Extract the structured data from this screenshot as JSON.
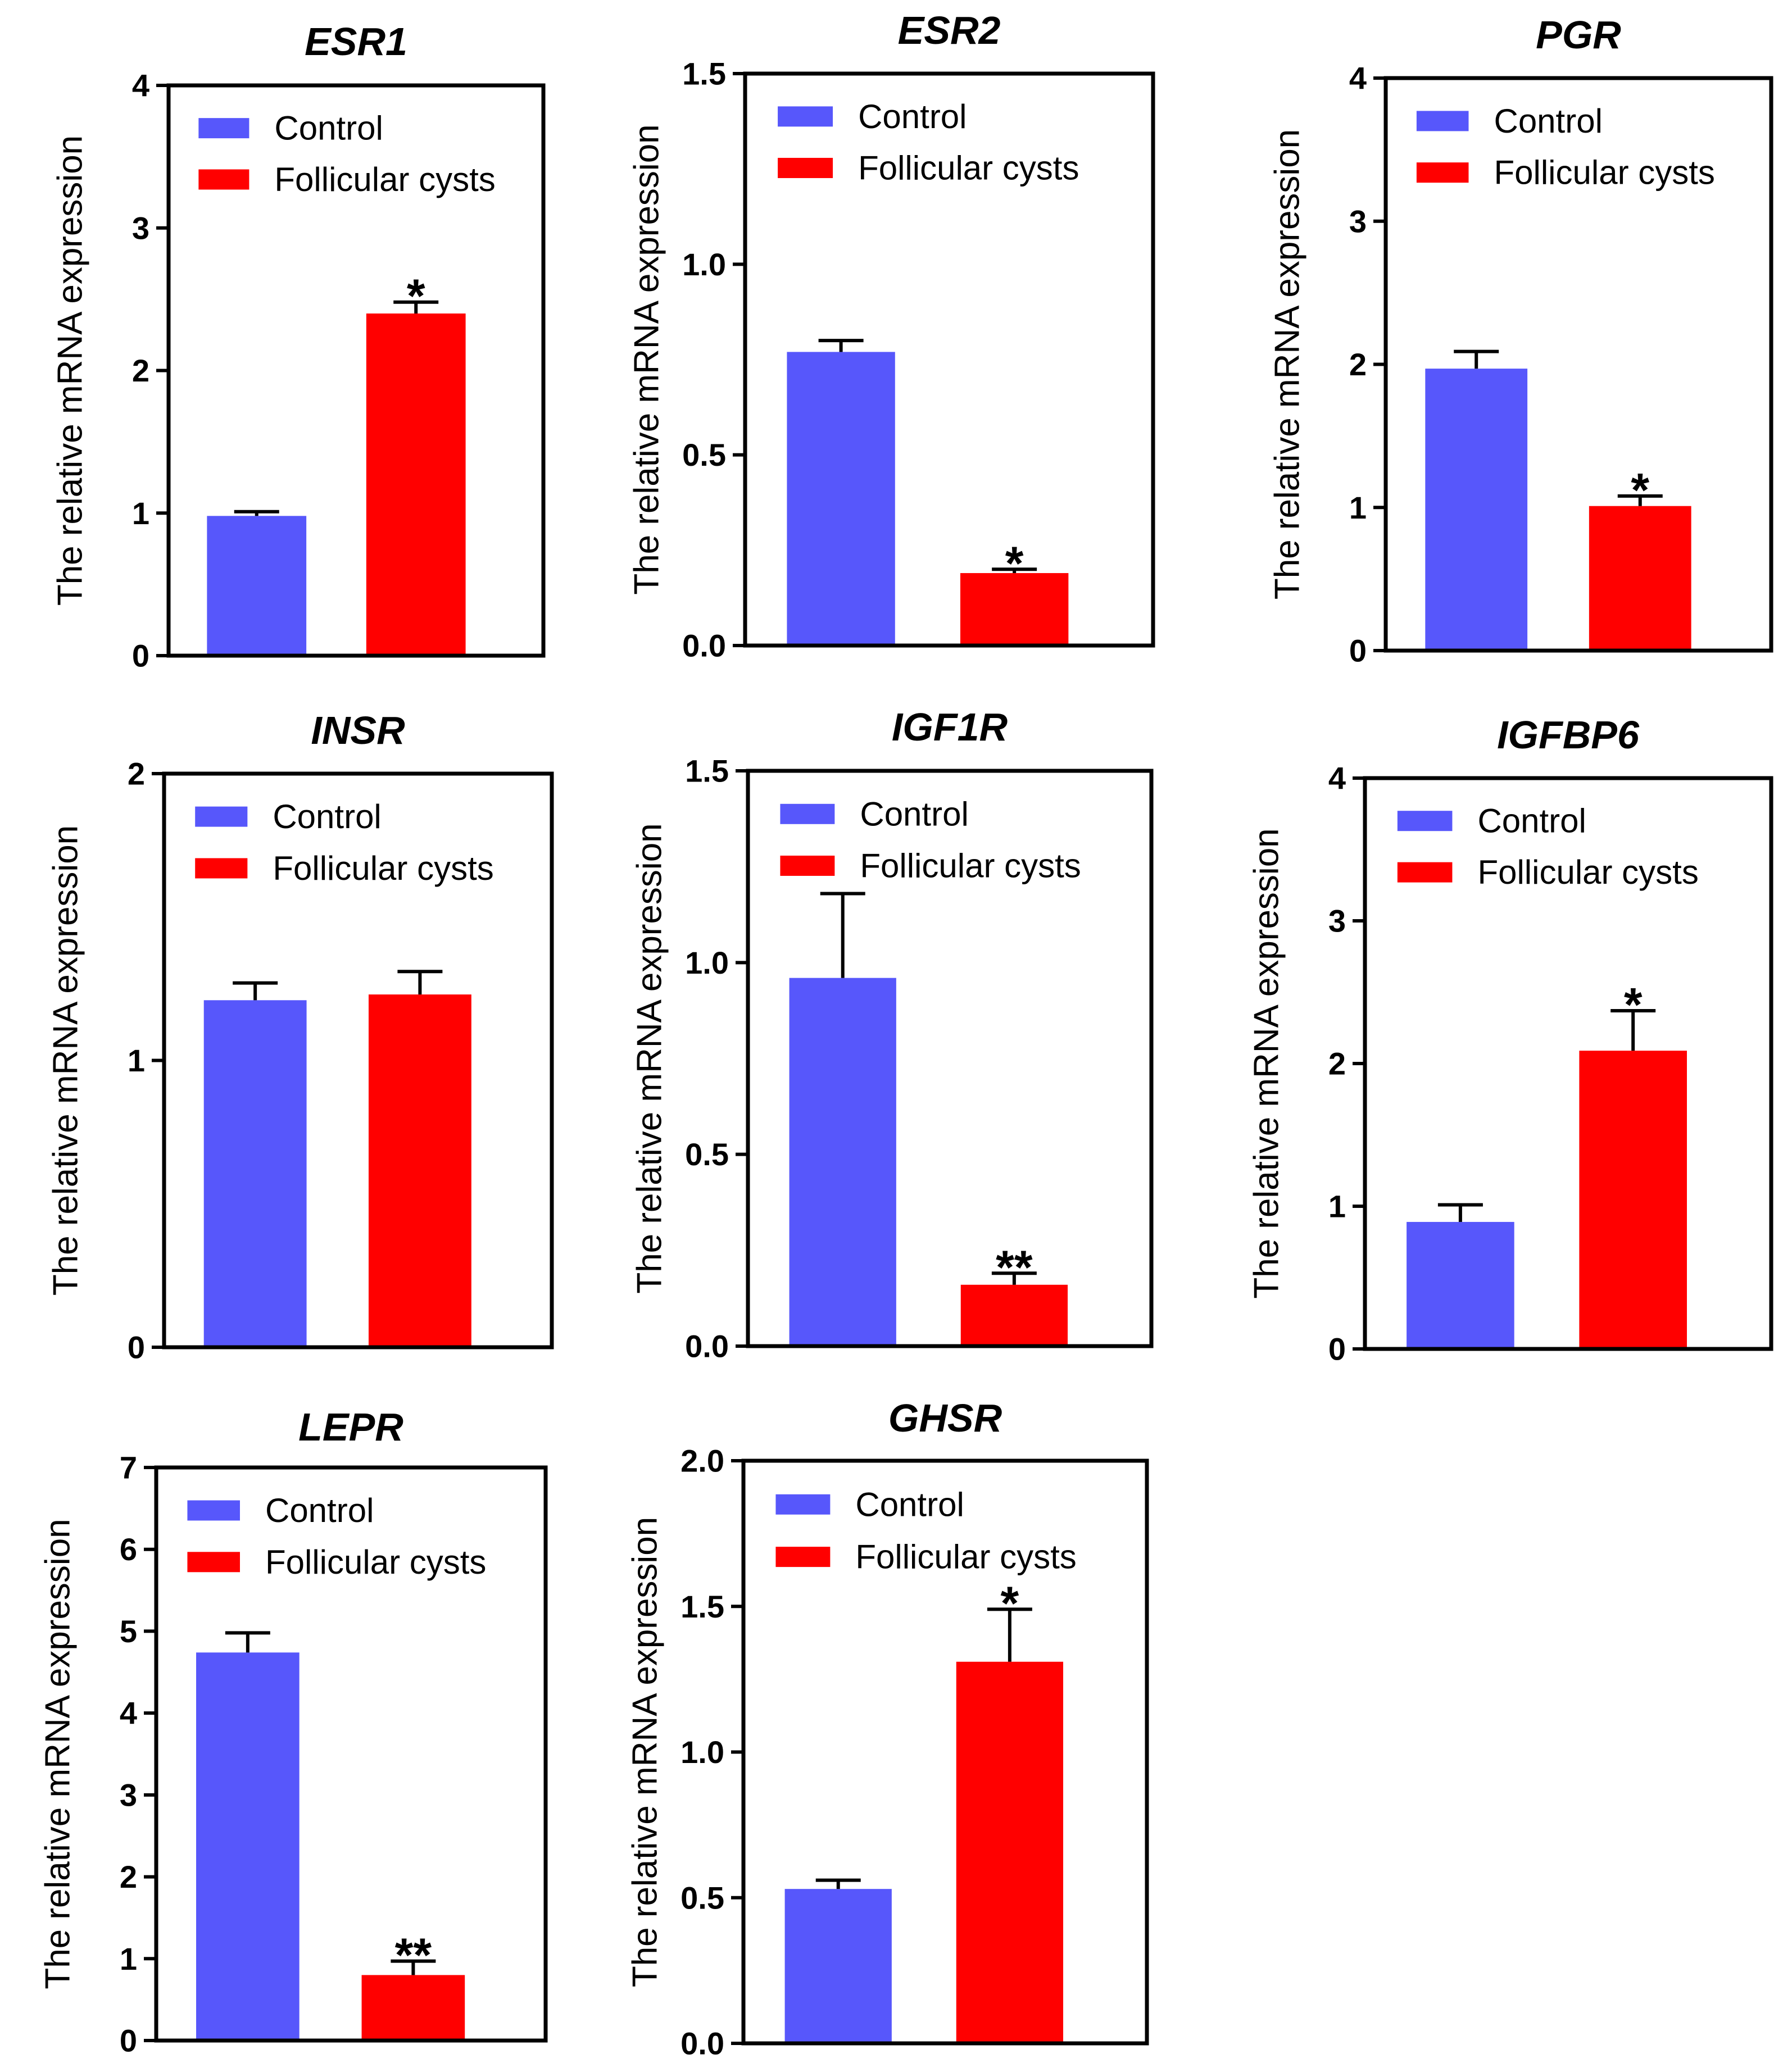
{
  "legend": {
    "control_label": "Control",
    "cysts_label": "Follicular cysts",
    "control_color": "#5757FB",
    "cysts_color": "#FF0000"
  },
  "chart_data": [
    {
      "type": "bar",
      "title": "ESR1",
      "ylabel": "The relative mRNA expression",
      "ylim": [
        0,
        4
      ],
      "ticks": [
        {
          "v": 0,
          "t": "0"
        },
        {
          "v": 1,
          "t": "1"
        },
        {
          "v": 2,
          "t": "2"
        },
        {
          "v": 3,
          "t": "3"
        },
        {
          "v": 4,
          "t": "4"
        }
      ],
      "categories": [
        "Control",
        "Follicular cysts"
      ],
      "values": [
        0.98,
        2.4
      ],
      "errors": [
        0.03,
        0.08
      ],
      "significance": [
        "",
        "*"
      ]
    },
    {
      "type": "bar",
      "title": "ESR2",
      "ylabel": "The relative mRNA expression",
      "ylim": [
        0,
        1.5
      ],
      "ticks": [
        {
          "v": 0,
          "t": "0.0"
        },
        {
          "v": 0.5,
          "t": "0.5"
        },
        {
          "v": 1,
          "t": "1.0"
        },
        {
          "v": 1.5,
          "t": "1.5"
        }
      ],
      "categories": [
        "Control",
        "Follicular cysts"
      ],
      "values": [
        0.77,
        0.19
      ],
      "errors": [
        0.03,
        0.01
      ],
      "significance": [
        "",
        "*"
      ]
    },
    {
      "type": "bar",
      "title": "PGR",
      "ylabel": "The relative mRNA expression",
      "ylim": [
        0,
        4
      ],
      "ticks": [
        {
          "v": 0,
          "t": "0"
        },
        {
          "v": 1,
          "t": "1"
        },
        {
          "v": 2,
          "t": "2"
        },
        {
          "v": 3,
          "t": "3"
        },
        {
          "v": 4,
          "t": "4"
        }
      ],
      "categories": [
        "Control",
        "Follicular cysts"
      ],
      "values": [
        1.97,
        1.01
      ],
      "errors": [
        0.12,
        0.07
      ],
      "significance": [
        "",
        "*"
      ]
    },
    {
      "type": "bar",
      "title": "INSR",
      "ylabel": "The relative mRNA expression",
      "ylim": [
        0,
        2
      ],
      "ticks": [
        {
          "v": 0,
          "t": "0"
        },
        {
          "v": 1,
          "t": "1"
        },
        {
          "v": 2,
          "t": "2"
        }
      ],
      "categories": [
        "Control",
        "Follicular cysts"
      ],
      "values": [
        1.21,
        1.23
      ],
      "errors": [
        0.06,
        0.08
      ],
      "significance": [
        "",
        ""
      ]
    },
    {
      "type": "bar",
      "title": "IGF1R",
      "ylabel": "The relative mRNA expression",
      "ylim": [
        0,
        1.5
      ],
      "ticks": [
        {
          "v": 0,
          "t": "0.0"
        },
        {
          "v": 0.5,
          "t": "0.5"
        },
        {
          "v": 1,
          "t": "1.0"
        },
        {
          "v": 1.5,
          "t": "1.5"
        }
      ],
      "categories": [
        "Control",
        "Follicular cysts"
      ],
      "values": [
        0.96,
        0.16
      ],
      "errors": [
        0.22,
        0.03
      ],
      "significance": [
        "",
        "**"
      ]
    },
    {
      "type": "bar",
      "title": "IGFBP6",
      "ylabel": "The relative mRNA expression",
      "ylim": [
        0,
        4
      ],
      "ticks": [
        {
          "v": 0,
          "t": "0"
        },
        {
          "v": 1,
          "t": "1"
        },
        {
          "v": 2,
          "t": "2"
        },
        {
          "v": 3,
          "t": "3"
        },
        {
          "v": 4,
          "t": "4"
        }
      ],
      "categories": [
        "Control",
        "Follicular cysts"
      ],
      "values": [
        0.89,
        2.09
      ],
      "errors": [
        0.12,
        0.28
      ],
      "significance": [
        "",
        "*"
      ]
    },
    {
      "type": "bar",
      "title": "LEPR",
      "ylabel": "The relative mRNA expression",
      "ylim": [
        0,
        7
      ],
      "ticks": [
        {
          "v": 0,
          "t": "0"
        },
        {
          "v": 1,
          "t": "1"
        },
        {
          "v": 2,
          "t": "2"
        },
        {
          "v": 3,
          "t": "3"
        },
        {
          "v": 4,
          "t": "4"
        },
        {
          "v": 5,
          "t": "5"
        },
        {
          "v": 6,
          "t": "6"
        },
        {
          "v": 7,
          "t": "7"
        }
      ],
      "categories": [
        "Control",
        "Follicular cysts"
      ],
      "values": [
        4.74,
        0.8
      ],
      "errors": [
        0.24,
        0.17
      ],
      "significance": [
        "",
        "**"
      ]
    },
    {
      "type": "bar",
      "title": "GHSR",
      "ylabel": "The relative mRNA expression",
      "ylim": [
        0,
        2
      ],
      "ticks": [
        {
          "v": 0,
          "t": "0.0"
        },
        {
          "v": 0.5,
          "t": "0.5"
        },
        {
          "v": 1,
          "t": "1.0"
        },
        {
          "v": 1.5,
          "t": "1.5"
        },
        {
          "v": 2,
          "t": "2.0"
        }
      ],
      "categories": [
        "Control",
        "Follicular cysts"
      ],
      "values": [
        0.53,
        1.31
      ],
      "errors": [
        0.03,
        0.18
      ],
      "significance": [
        "",
        "*"
      ]
    }
  ]
}
